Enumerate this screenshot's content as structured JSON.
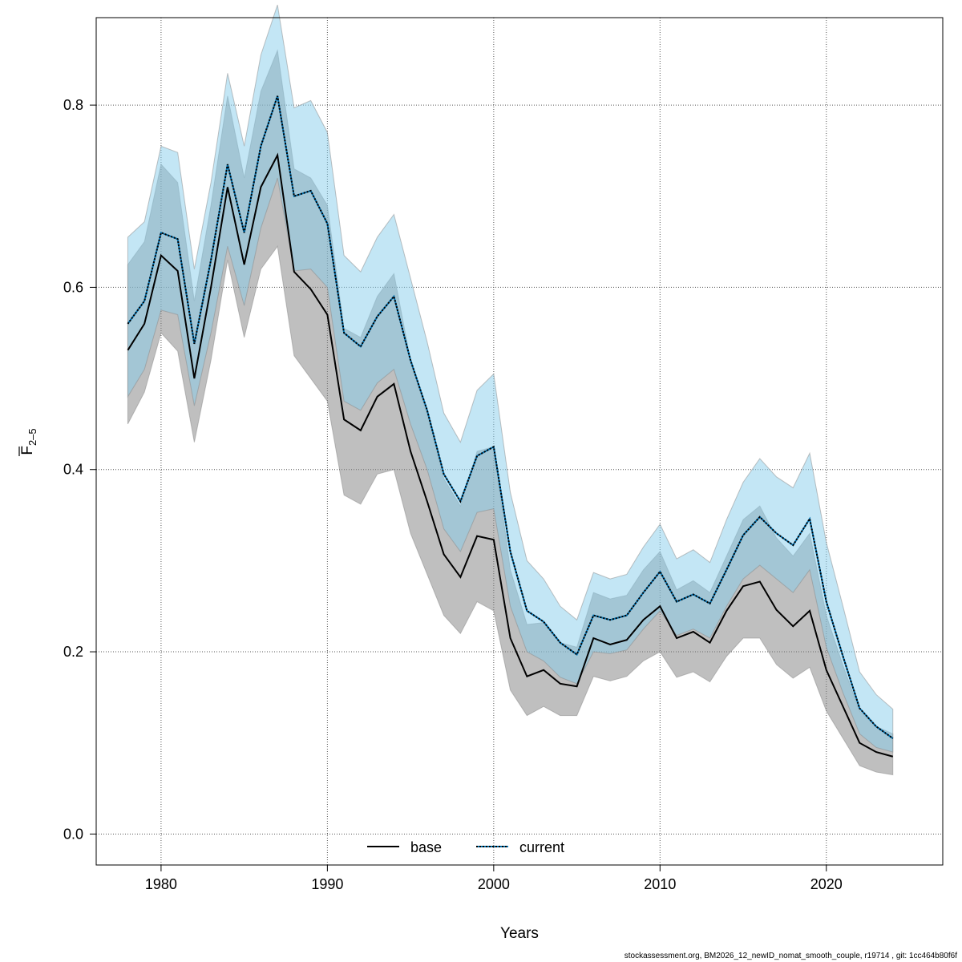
{
  "chart_data": {
    "type": "line",
    "title": "",
    "xlabel": "Years",
    "ylabel_main": "F",
    "ylabel_sub": "2–5",
    "xlim": [
      1976.1,
      2027.0
    ],
    "ylim": [
      -0.034,
      0.896
    ],
    "xticks": [
      1980,
      1990,
      2000,
      2010,
      2020
    ],
    "xtick_labels": [
      "1980",
      "1990",
      "2000",
      "2010",
      "2020"
    ],
    "yticks": [
      0.0,
      0.2,
      0.4,
      0.6,
      0.8
    ],
    "ytick_labels": [
      "0.0",
      "0.2",
      "0.4",
      "0.6",
      "0.8"
    ],
    "grid": true,
    "legend_position": "bottom-center",
    "x": [
      1978,
      1979,
      1980,
      1981,
      1982,
      1983,
      1984,
      1985,
      1986,
      1987,
      1988,
      1989,
      1990,
      1991,
      1992,
      1993,
      1994,
      1995,
      1996,
      1997,
      1998,
      1999,
      2000,
      2001,
      2002,
      2003,
      2004,
      2005,
      2006,
      2007,
      2008,
      2009,
      2010,
      2011,
      2012,
      2013,
      2014,
      2015,
      2016,
      2017,
      2018,
      2019,
      2020,
      2021,
      2022,
      2023,
      2024
    ],
    "series": [
      {
        "name": "base",
        "color": "#000000",
        "band_color": "#808080",
        "values": [
          0.531,
          0.56,
          0.635,
          0.618,
          0.5,
          0.6,
          0.71,
          0.625,
          0.71,
          0.745,
          0.617,
          0.598,
          0.57,
          0.455,
          0.443,
          0.48,
          0.494,
          0.42,
          0.365,
          0.307,
          0.282,
          0.327,
          0.323,
          0.215,
          0.173,
          0.18,
          0.165,
          0.162,
          0.215,
          0.208,
          0.213,
          0.235,
          0.25,
          0.215,
          0.222,
          0.21,
          0.245,
          0.272,
          0.277,
          0.246,
          0.228,
          0.245,
          0.18,
          0.14,
          0.1,
          0.09,
          0.085
        ],
        "lower": [
          0.45,
          0.485,
          0.55,
          0.53,
          0.43,
          0.52,
          0.63,
          0.545,
          0.62,
          0.645,
          0.525,
          0.5,
          0.475,
          0.372,
          0.362,
          0.395,
          0.4,
          0.33,
          0.285,
          0.24,
          0.22,
          0.255,
          0.245,
          0.158,
          0.13,
          0.14,
          0.13,
          0.13,
          0.173,
          0.168,
          0.173,
          0.19,
          0.2,
          0.172,
          0.178,
          0.167,
          0.195,
          0.215,
          0.215,
          0.186,
          0.171,
          0.183,
          0.135,
          0.105,
          0.075,
          0.068,
          0.065
        ],
        "upper": [
          0.625,
          0.65,
          0.735,
          0.715,
          0.585,
          0.69,
          0.81,
          0.72,
          0.815,
          0.86,
          0.73,
          0.72,
          0.69,
          0.555,
          0.545,
          0.59,
          0.615,
          0.52,
          0.46,
          0.39,
          0.36,
          0.42,
          0.425,
          0.29,
          0.23,
          0.232,
          0.21,
          0.205,
          0.265,
          0.258,
          0.262,
          0.29,
          0.31,
          0.268,
          0.278,
          0.265,
          0.305,
          0.345,
          0.36,
          0.325,
          0.305,
          0.33,
          0.24,
          0.185,
          0.135,
          0.118,
          0.11
        ]
      },
      {
        "name": "current",
        "color": "#0072B2",
        "band_color": "#87CEEB",
        "values": [
          0.56,
          0.585,
          0.66,
          0.653,
          0.538,
          0.63,
          0.735,
          0.66,
          0.755,
          0.81,
          0.7,
          0.706,
          0.67,
          0.55,
          0.535,
          0.568,
          0.59,
          0.52,
          0.465,
          0.395,
          0.365,
          0.415,
          0.425,
          0.31,
          0.245,
          0.233,
          0.21,
          0.197,
          0.24,
          0.235,
          0.24,
          0.265,
          0.288,
          0.255,
          0.263,
          0.253,
          0.29,
          0.328,
          0.348,
          0.33,
          0.317,
          0.346,
          0.255,
          0.195,
          0.138,
          0.118,
          0.105
        ],
        "lower": [
          0.48,
          0.51,
          0.575,
          0.57,
          0.47,
          0.55,
          0.645,
          0.58,
          0.665,
          0.72,
          0.618,
          0.62,
          0.6,
          0.475,
          0.465,
          0.495,
          0.51,
          0.45,
          0.4,
          0.335,
          0.31,
          0.353,
          0.357,
          0.25,
          0.2,
          0.19,
          0.172,
          0.165,
          0.2,
          0.198,
          0.202,
          0.225,
          0.245,
          0.218,
          0.225,
          0.215,
          0.25,
          0.28,
          0.295,
          0.28,
          0.265,
          0.29,
          0.205,
          0.155,
          0.11,
          0.095,
          0.09
        ],
        "upper": [
          0.655,
          0.672,
          0.755,
          0.748,
          0.62,
          0.715,
          0.835,
          0.755,
          0.855,
          0.91,
          0.797,
          0.805,
          0.77,
          0.635,
          0.617,
          0.655,
          0.68,
          0.61,
          0.54,
          0.462,
          0.43,
          0.487,
          0.505,
          0.375,
          0.3,
          0.28,
          0.25,
          0.235,
          0.287,
          0.28,
          0.285,
          0.315,
          0.34,
          0.302,
          0.312,
          0.298,
          0.345,
          0.386,
          0.412,
          0.392,
          0.38,
          0.418,
          0.32,
          0.25,
          0.178,
          0.153,
          0.137
        ]
      }
    ],
    "footer": "stockassessment.org, BM2026_12_newID_nomat_smooth_couple, r19714 , git: 1cc464b80f6f"
  }
}
